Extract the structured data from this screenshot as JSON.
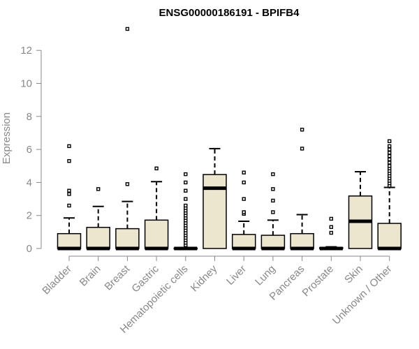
{
  "chart_data": {
    "type": "boxplot",
    "title": "ENSG00000186191 - BPIFB4",
    "ylabel": "Expression",
    "xlabel": "",
    "ylim": [
      0,
      13
    ],
    "yticks": [
      0,
      2,
      4,
      6,
      8,
      10,
      12
    ],
    "grid": false,
    "box_fill": "#ede6cf",
    "categories": [
      "Bladder",
      "Brain",
      "Breast",
      "Gastric",
      "Hematopoietic cells",
      "Kidney",
      "Liver",
      "Lung",
      "Pancreas",
      "Prostate",
      "Skin",
      "Unknown / Other"
    ],
    "boxes": [
      {
        "q1": 0,
        "median": 0,
        "q3": 0.9,
        "whisker_low": 0,
        "whisker_high": 1.85,
        "outliers": [
          2.6,
          3.3,
          3.5,
          5.3,
          6.2
        ]
      },
      {
        "q1": 0,
        "median": 0,
        "q3": 1.28,
        "whisker_low": 0,
        "whisker_high": 2.55,
        "outliers": [
          3.6
        ]
      },
      {
        "q1": 0,
        "median": 0,
        "q3": 1.2,
        "whisker_low": 0,
        "whisker_high": 2.85,
        "outliers": [
          3.9,
          13.3
        ]
      },
      {
        "q1": 0,
        "median": 0,
        "q3": 1.72,
        "whisker_low": 0,
        "whisker_high": 4.05,
        "outliers": [
          4.85
        ]
      },
      {
        "q1": 0,
        "median": 0,
        "q3": 0.02,
        "whisker_low": 0,
        "whisker_high": 0.05,
        "outliers": [
          0.2,
          0.35,
          0.5,
          0.65,
          0.8,
          0.95,
          1.1,
          1.25,
          1.4,
          1.55,
          1.7,
          1.85,
          2.0,
          2.15,
          2.3,
          2.45,
          2.6,
          3.0,
          3.5,
          4.0,
          4.5
        ]
      },
      {
        "q1": 0,
        "median": 3.65,
        "q3": 4.48,
        "whisker_low": 0,
        "whisker_high": 6.05,
        "outliers": []
      },
      {
        "q1": 0,
        "median": 0,
        "q3": 0.85,
        "whisker_low": 0,
        "whisker_high": 1.65,
        "outliers": [
          2.1,
          2.2,
          3.0,
          4.0,
          4.6
        ]
      },
      {
        "q1": 0,
        "median": 0,
        "q3": 0.8,
        "whisker_low": 0,
        "whisker_high": 1.72,
        "outliers": [
          2.2,
          2.9,
          3.6,
          4.5
        ]
      },
      {
        "q1": 0,
        "median": 0,
        "q3": 0.9,
        "whisker_low": 0,
        "whisker_high": 2.05,
        "outliers": [
          6.05,
          7.2
        ]
      },
      {
        "q1": 0,
        "median": 0,
        "q3": 0.05,
        "whisker_low": 0,
        "whisker_high": 0.1,
        "outliers": [
          0.95,
          1.3,
          1.8
        ]
      },
      {
        "q1": 0,
        "median": 1.65,
        "q3": 3.18,
        "whisker_low": 0,
        "whisker_high": 4.65,
        "outliers": []
      },
      {
        "q1": 0,
        "median": 0,
        "q3": 1.52,
        "whisker_low": 0,
        "whisker_high": 3.7,
        "outliers": [
          3.8,
          3.95,
          4.1,
          4.25,
          4.4,
          4.55,
          4.7,
          4.85,
          5.0,
          5.2,
          5.4,
          5.6,
          5.8,
          6.0,
          6.2,
          6.5
        ]
      }
    ]
  }
}
